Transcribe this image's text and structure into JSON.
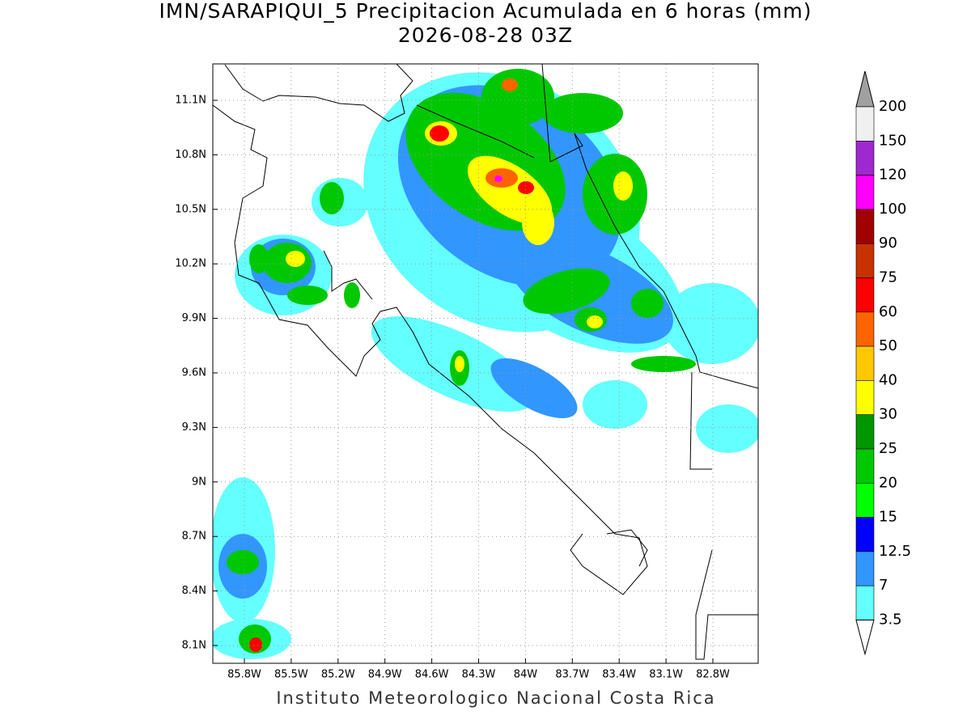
{
  "title": "IMN/SARAPIQUI_5 Precipitacion Acumulada en 6 horas (mm)",
  "subtitle": "2026-08-28 03Z",
  "lat_labels": [
    "11.1N",
    "10.8N",
    "10.5N",
    "10.2N",
    "9.9N",
    "9.6N",
    "9.3N",
    "9N",
    "8.7N",
    "8.4N",
    "8.1N"
  ],
  "lon_labels": [
    "85.8W",
    "85.5W",
    "85.2W",
    "84.9W",
    "84.6W",
    "84.3W",
    "84W",
    "83.7W",
    "83.4W",
    "83.1W",
    "82.8W"
  ],
  "legend": {
    "levels": [
      200,
      150,
      120,
      100,
      90,
      75,
      60,
      50,
      40,
      30,
      25,
      20,
      15,
      12.5,
      7,
      3.5
    ],
    "colors": [
      "#f0f0f0",
      "#a028d0",
      "#ff00ff",
      "#a00000",
      "#c83200",
      "#ff0000",
      "#ff6400",
      "#ffc800",
      "#ffff00",
      "#009600",
      "#00c800",
      "#00ff00",
      "#0000ff",
      "#3296ff",
      "#64ffff"
    ],
    "over_color": "#a0a0a0",
    "under_color": "#ffffff"
  },
  "footer": "Instituto Meteorologico Nacional Costa Rica"
}
